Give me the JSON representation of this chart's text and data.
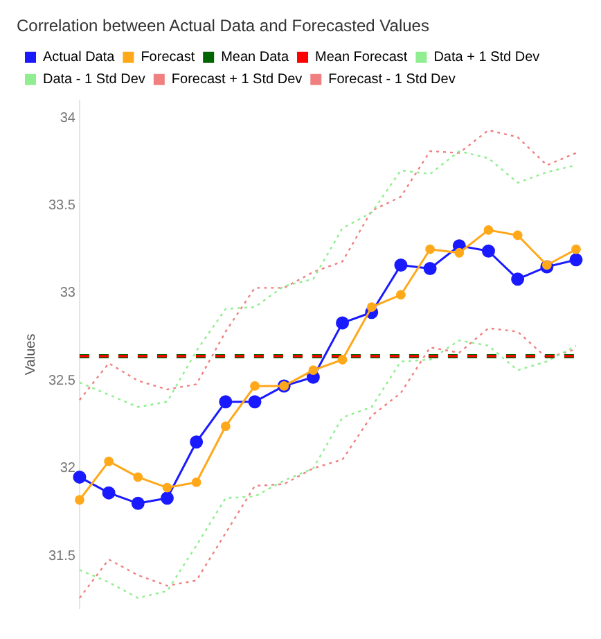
{
  "chart_data": {
    "type": "line",
    "title": "Correlation between Actual Data and Forecasted Values",
    "ylabel": "Values",
    "categories": [
      null,
      null,
      null,
      null,
      null,
      null,
      null,
      null,
      null,
      null,
      null,
      null,
      null,
      null,
      null,
      null,
      null,
      null
    ],
    "series": [
      {
        "name": "Actual Data",
        "color": "#1a1aff",
        "marker": "circle",
        "line_style": "solid",
        "values": [
          31.95,
          31.86,
          31.8,
          31.83,
          32.15,
          32.38,
          32.38,
          32.47,
          32.52,
          32.83,
          32.89,
          33.16,
          33.14,
          33.27,
          33.24,
          33.08,
          33.15,
          33.19
        ]
      },
      {
        "name": "Forecast",
        "color": "#ffa81a",
        "marker": "circle",
        "line_style": "solid",
        "values": [
          31.82,
          32.04,
          31.95,
          31.89,
          31.92,
          32.24,
          32.47,
          32.47,
          32.56,
          32.62,
          32.92,
          32.99,
          33.25,
          33.23,
          33.36,
          33.33,
          33.16,
          33.25
        ]
      },
      {
        "name": "Mean Data",
        "color": "#006400",
        "marker": "none",
        "line_style": "dashed",
        "values": [
          32.64,
          32.64,
          32.64,
          32.64,
          32.64,
          32.64,
          32.64,
          32.64,
          32.64,
          32.64,
          32.64,
          32.64,
          32.64,
          32.64,
          32.64,
          32.64,
          32.64,
          32.64
        ]
      },
      {
        "name": "Mean Forecast",
        "color": "#ff0000",
        "marker": "none",
        "line_style": "dashed",
        "values": [
          32.64,
          32.64,
          32.64,
          32.64,
          32.64,
          32.64,
          32.64,
          32.64,
          32.64,
          32.64,
          32.64,
          32.64,
          32.64,
          32.64,
          32.64,
          32.64,
          32.64,
          32.64
        ]
      },
      {
        "name": "Data + 1 Std Dev",
        "color": "#90ee90",
        "marker": "none",
        "line_style": "dotted",
        "values": [
          32.49,
          32.42,
          32.35,
          32.38,
          32.67,
          32.91,
          32.92,
          33.04,
          33.08,
          33.37,
          33.46,
          33.7,
          33.68,
          33.81,
          33.77,
          33.63,
          33.69,
          33.73
        ]
      },
      {
        "name": "Data - 1 Std Dev",
        "color": "#90ee90",
        "marker": "none",
        "line_style": "dotted",
        "values": [
          31.42,
          31.35,
          31.26,
          31.3,
          31.56,
          31.83,
          31.84,
          31.93,
          32.0,
          32.29,
          32.35,
          32.61,
          32.62,
          32.73,
          32.7,
          32.56,
          32.61,
          32.7
        ]
      },
      {
        "name": "Forecast + 1 Std Dev",
        "color": "#f08080",
        "marker": "none",
        "line_style": "dotted",
        "values": [
          32.39,
          32.6,
          32.5,
          32.45,
          32.48,
          32.78,
          33.03,
          33.03,
          33.12,
          33.18,
          33.47,
          33.55,
          33.81,
          33.8,
          33.93,
          33.89,
          33.73,
          33.8
        ]
      },
      {
        "name": "Forecast - 1 Std Dev",
        "color": "#f08080",
        "marker": "none",
        "line_style": "dotted",
        "values": [
          31.26,
          31.48,
          31.39,
          31.33,
          31.36,
          31.63,
          31.9,
          31.91,
          32.0,
          32.05,
          32.3,
          32.43,
          32.69,
          32.66,
          32.8,
          32.78,
          32.63,
          32.68
        ]
      }
    ],
    "ylim": [
      31.2,
      34.1
    ],
    "yticks": [
      31.5,
      32,
      32.5,
      33,
      33.5,
      34
    ],
    "grid": false,
    "legend": "top left",
    "tick_labels": "y"
  }
}
